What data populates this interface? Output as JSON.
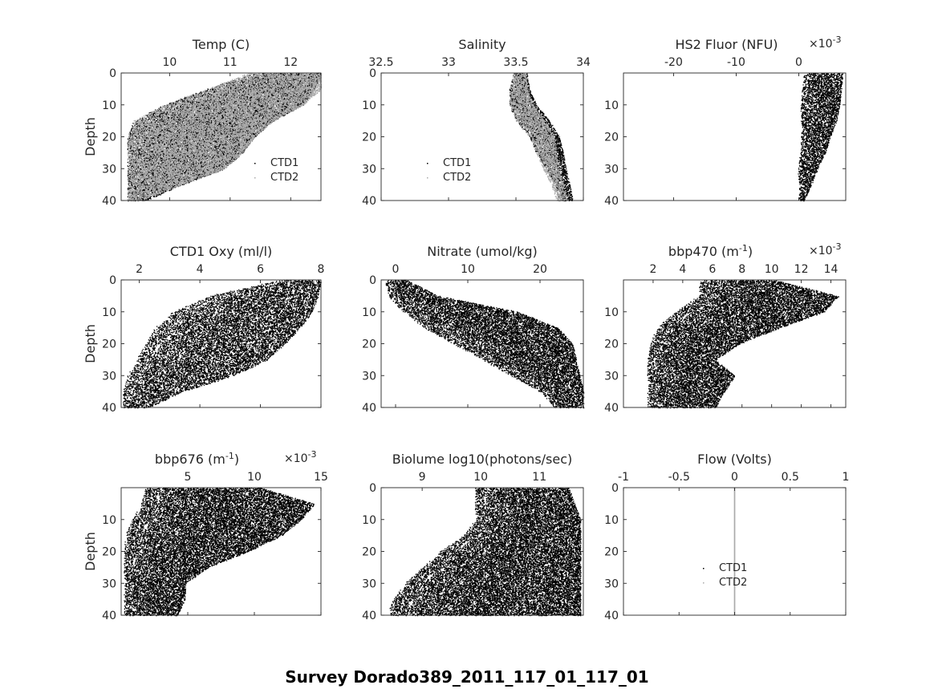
{
  "figure": {
    "suptitle": "Survey Dorado389_2011_117_01_117_01"
  },
  "chart_data": [
    {
      "type": "scatter",
      "title": "Temp (C)",
      "ylabel": "Depth",
      "xlim": [
        9.2,
        12.5
      ],
      "ylim": [
        0,
        40
      ],
      "y_reversed": true,
      "xticks": [
        10,
        11,
        12
      ],
      "xtick_labels": [
        "10",
        "11",
        "12"
      ],
      "yticks": [
        0,
        10,
        20,
        30,
        40
      ],
      "ytick_labels": [
        "0",
        "10",
        "20",
        "30",
        "40"
      ],
      "legend": {
        "location": "lower-right",
        "entries": [
          "CTD1",
          "CTD2"
        ]
      },
      "series": [
        {
          "name": "CTD1",
          "color": "#000000",
          "profile": [
            [
              0,
              11.4,
              12.5
            ],
            [
              5,
              10.6,
              12.4
            ],
            [
              10,
              9.9,
              12.2
            ],
            [
              15,
              9.4,
              11.7
            ],
            [
              20,
              9.3,
              11.4
            ],
            [
              25,
              9.3,
              11.2
            ],
            [
              30,
              9.3,
              10.9
            ],
            [
              35,
              9.3,
              10.2
            ],
            [
              40,
              9.3,
              9.6
            ]
          ]
        },
        {
          "name": "CTD2",
          "color": "#aaaaaa",
          "profile": [
            [
              0,
              11.3,
              12.5
            ],
            [
              5,
              10.6,
              12.5
            ],
            [
              10,
              9.9,
              12.2
            ],
            [
              15,
              9.4,
              11.7
            ],
            [
              20,
              9.3,
              11.4
            ],
            [
              25,
              9.3,
              11.2
            ],
            [
              30,
              9.3,
              10.9
            ],
            [
              35,
              9.3,
              10.2
            ],
            [
              40,
              9.3,
              9.5
            ]
          ]
        }
      ]
    },
    {
      "type": "scatter",
      "title": "Salinity",
      "ylabel": "",
      "xlim": [
        32.5,
        34
      ],
      "ylim": [
        0,
        40
      ],
      "y_reversed": true,
      "xticks": [
        32.5,
        33,
        33.5,
        34
      ],
      "xtick_labels": [
        "32.5",
        "33",
        "33.5",
        "34"
      ],
      "yticks": [
        0,
        10,
        20,
        30,
        40
      ],
      "ytick_labels": [
        "0",
        "10",
        "20",
        "30",
        "40"
      ],
      "legend": {
        "location": "lower-center",
        "entries": [
          "CTD1",
          "CTD2"
        ]
      },
      "series": [
        {
          "name": "CTD1",
          "color": "#000000",
          "profile": [
            [
              0,
              33.48,
              33.58
            ],
            [
              5,
              33.45,
              33.6
            ],
            [
              10,
              33.45,
              33.65
            ],
            [
              15,
              33.5,
              33.75
            ],
            [
              20,
              33.6,
              33.82
            ],
            [
              25,
              33.65,
              33.85
            ],
            [
              30,
              33.72,
              33.87
            ],
            [
              35,
              33.78,
              33.9
            ],
            [
              40,
              33.82,
              33.92
            ]
          ]
        },
        {
          "name": "CTD2",
          "color": "#aaaaaa",
          "profile": [
            [
              0,
              33.48,
              33.58
            ],
            [
              5,
              33.45,
              33.58
            ],
            [
              10,
              33.45,
              33.63
            ],
            [
              15,
              33.5,
              33.72
            ],
            [
              20,
              33.6,
              33.78
            ],
            [
              25,
              33.65,
              33.8
            ],
            [
              30,
              33.7,
              33.82
            ],
            [
              35,
              33.76,
              33.85
            ],
            [
              40,
              33.8,
              33.88
            ]
          ]
        }
      ]
    },
    {
      "type": "scatter",
      "title": "HS2 Fluor (NFU)",
      "ylabel": "",
      "x_multiplier": "×10",
      "x_exponent": "-3",
      "xlim": [
        -0.028,
        0.0075
      ],
      "ylim": [
        0,
        40
      ],
      "y_reversed": true,
      "xticks": [
        -0.02,
        -0.01,
        0
      ],
      "xtick_labels": [
        "-20",
        "-10",
        "0"
      ],
      "yticks": [
        10,
        20,
        30,
        40
      ],
      "ytick_labels": [
        "10",
        "20",
        "30",
        "40"
      ],
      "series": [
        {
          "name": "",
          "color": "#000000",
          "profile": [
            [
              0,
              0.0008,
              0.007
            ],
            [
              5,
              0.0005,
              0.0068
            ],
            [
              10,
              0.0003,
              0.0065
            ],
            [
              15,
              0.0003,
              0.006
            ],
            [
              20,
              0.0003,
              0.005
            ],
            [
              25,
              0.0002,
              0.0042
            ],
            [
              30,
              -0.0002,
              0.003
            ],
            [
              35,
              0,
              0.002
            ],
            [
              40,
              0,
              0.0008
            ]
          ]
        }
      ]
    },
    {
      "type": "line",
      "title": "CTD1 Oxy (ml/l)",
      "ylabel": "Depth",
      "xlim": [
        1.4,
        8
      ],
      "ylim": [
        0,
        40
      ],
      "y_reversed": true,
      "xticks": [
        2,
        4,
        6,
        8
      ],
      "xtick_labels": [
        "2",
        "4",
        "6",
        "8"
      ],
      "yticks": [
        0,
        10,
        20,
        30,
        40
      ],
      "ytick_labels": [
        "0",
        "10",
        "20",
        "30",
        "40"
      ],
      "series": [
        {
          "name": "",
          "color": "#000000",
          "profile": [
            [
              0,
              6.6,
              8
            ],
            [
              5,
              4.3,
              7.9
            ],
            [
              10,
              3.1,
              7.7
            ],
            [
              15,
              2.5,
              7.3
            ],
            [
              20,
              2.2,
              6.8
            ],
            [
              25,
              1.9,
              6.2
            ],
            [
              30,
              1.6,
              5.1
            ],
            [
              35,
              1.45,
              3.4
            ],
            [
              40,
              1.45,
              2.3
            ]
          ]
        }
      ]
    },
    {
      "type": "scatter",
      "title": "Nitrate (umol/kg)",
      "ylabel": "",
      "xlim": [
        -2,
        26
      ],
      "ylim": [
        0,
        40
      ],
      "y_reversed": true,
      "xticks": [
        0,
        10,
        20
      ],
      "xtick_labels": [
        "0",
        "10",
        "20"
      ],
      "yticks": [
        0,
        10,
        20,
        30,
        40
      ],
      "ytick_labels": [
        "0",
        "10",
        "20",
        "30",
        "40"
      ],
      "series": [
        {
          "name": "",
          "color": "#000000",
          "profile": [
            [
              0,
              -1.5,
              1.5
            ],
            [
              5,
              -1,
              6
            ],
            [
              10,
              1,
              17
            ],
            [
              15,
              4,
              22.5
            ],
            [
              20,
              8,
              24.5
            ],
            [
              25,
              12,
              25
            ],
            [
              30,
              16,
              25.5
            ],
            [
              35,
              20,
              26
            ],
            [
              40,
              22,
              26
            ]
          ]
        }
      ]
    },
    {
      "type": "scatter",
      "title": "bbp470 (m",
      "title_sup": "-1",
      "title_end": ")",
      "ylabel": "",
      "x_multiplier": "×10",
      "x_exponent": "-3",
      "xlim": [
        0,
        0.015
      ],
      "ylim": [
        0,
        40
      ],
      "y_reversed": true,
      "xticks": [
        0.002,
        0.004,
        0.006,
        0.008,
        0.01,
        0.012,
        0.014
      ],
      "xtick_labels": [
        "2",
        "4",
        "6",
        "8",
        "10",
        "12",
        "14"
      ],
      "yticks": [
        10,
        20,
        30,
        40
      ],
      "ytick_labels": [
        "10",
        "20",
        "30",
        "40"
      ],
      "series": [
        {
          "name": "",
          "color": "#000000",
          "profile": [
            [
              0,
              0.0052,
              0.0102
            ],
            [
              5,
              0.005,
              0.0145
            ],
            [
              10,
              0.0035,
              0.0135
            ],
            [
              15,
              0.0022,
              0.0105
            ],
            [
              20,
              0.0018,
              0.0078
            ],
            [
              25,
              0.0016,
              0.0062
            ],
            [
              30,
              0.0016,
              0.0075
            ],
            [
              35,
              0.0016,
              0.0068
            ],
            [
              40,
              0.0016,
              0.0062
            ]
          ]
        }
      ]
    },
    {
      "type": "scatter",
      "title": "bbp676 (m",
      "title_sup": "-1",
      "title_end": ")",
      "ylabel": "Depth",
      "x_multiplier": "×10",
      "x_exponent": "-3",
      "xlim": [
        0,
        0.015
      ],
      "ylim": [
        0,
        40
      ],
      "y_reversed": true,
      "xticks": [
        0.005,
        0.01,
        0.015
      ],
      "xtick_labels": [
        "5",
        "10",
        "15"
      ],
      "yticks": [
        10,
        20,
        30,
        40
      ],
      "ytick_labels": [
        "10",
        "20",
        "30",
        "40"
      ],
      "series": [
        {
          "name": "",
          "color": "#000000",
          "profile": [
            [
              0,
              0.0018,
              0.0105
            ],
            [
              5,
              0.0015,
              0.0145
            ],
            [
              10,
              0.0008,
              0.0135
            ],
            [
              15,
              0.0003,
              0.012
            ],
            [
              20,
              0.0002,
              0.0095
            ],
            [
              25,
              0.0002,
              0.0065
            ],
            [
              30,
              0.0002,
              0.0048
            ],
            [
              35,
              0.0002,
              0.0048
            ],
            [
              40,
              0.0002,
              0.0042
            ]
          ]
        }
      ]
    },
    {
      "type": "scatter",
      "title": "Biolume log10(photons/sec)",
      "ylabel": "",
      "xlim": [
        8.3,
        11.75
      ],
      "ylim": [
        0,
        40
      ],
      "y_reversed": true,
      "xticks": [
        9,
        10,
        11
      ],
      "xtick_labels": [
        "9",
        "10",
        "11"
      ],
      "yticks": [
        0,
        10,
        20,
        30,
        40
      ],
      "ytick_labels": [
        "0",
        "10",
        "20",
        "30",
        "40"
      ],
      "series": [
        {
          "name": "",
          "color": "#000000",
          "profile": [
            [
              0,
              9.9,
              11.5
            ],
            [
              5,
              9.9,
              11.6
            ],
            [
              10,
              9.9,
              11.7
            ],
            [
              15,
              9.7,
              11.7
            ],
            [
              20,
              9.3,
              11.7
            ],
            [
              25,
              9,
              11.7
            ],
            [
              30,
              8.7,
              11.7
            ],
            [
              35,
              8.5,
              11.7
            ],
            [
              40,
              8.4,
              11.7
            ]
          ]
        }
      ]
    },
    {
      "type": "scatter",
      "title": "Flow (Volts)",
      "ylabel": "",
      "xlim": [
        -1,
        1
      ],
      "ylim": [
        0,
        40
      ],
      "y_reversed": true,
      "xticks": [
        -1,
        -0.5,
        0,
        0.5,
        1
      ],
      "xtick_labels": [
        "-1",
        "-0.5",
        "0",
        "0.5",
        "1"
      ],
      "yticks": [
        0,
        10,
        20,
        30,
        40
      ],
      "ytick_labels": [
        "0",
        "10",
        "20",
        "30",
        "40"
      ],
      "legend": {
        "location": "lower-left",
        "entries": [
          "CTD1",
          "CTD2"
        ]
      },
      "series": [
        {
          "name": "CTD1",
          "color": "#000000",
          "x_constant": 0
        },
        {
          "name": "CTD2",
          "color": "#aaaaaa",
          "x_constant": 0
        }
      ]
    }
  ]
}
